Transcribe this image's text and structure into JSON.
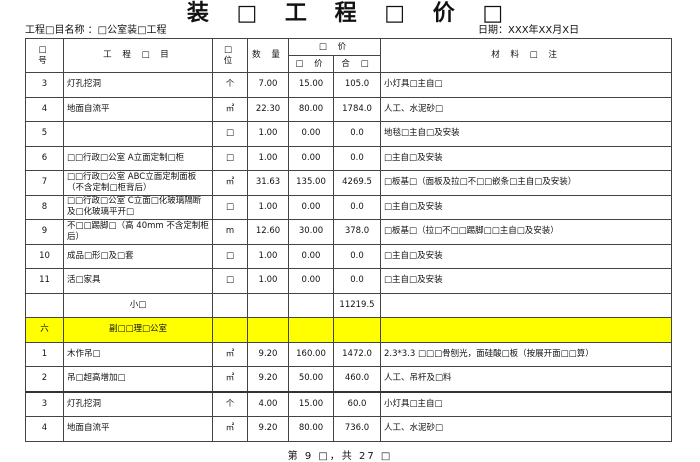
{
  "title": "装 □ 工 程 □ 价 □",
  "project": "工程□目名称 ：□公室装□工程",
  "date": "日期：XXX年XX月X日",
  "headers": {
    "no": "□ 号",
    "item": "工 程 □ 目",
    "unit": "□ 位",
    "qty": "数 量",
    "price_group": "□ 价",
    "unit_price": "□ 价",
    "total": "合 □",
    "notes": "材 料 □ 注"
  },
  "rows": [
    {
      "no": "3",
      "item": "灯孔挖洞",
      "unit": "个",
      "qty": "7.00",
      "price": "15.00",
      "total": "105.0",
      "notes": "小灯具□主自□"
    },
    {
      "no": "4",
      "item": "地面自流平",
      "unit": "㎡",
      "qty": "22.30",
      "price": "80.00",
      "total": "1784.0",
      "notes": "人工、水泥砂□"
    },
    {
      "no": "5",
      "item": "",
      "unit": "□",
      "qty": "1.00",
      "price": "0.00",
      "total": "0.0",
      "notes": "地毯□主自□及安装"
    },
    {
      "no": "6",
      "item": "□□行政□公室 A立面定制□柜",
      "unit": "□",
      "qty": "1.00",
      "price": "0.00",
      "total": "0.0",
      "notes": "□主自□及安装"
    },
    {
      "no": "7",
      "item": "□□行政□公室 ABC立面定制面板（不含定制□柜背后）",
      "unit": "㎡",
      "qty": "31.63",
      "price": "135.00",
      "total": "4269.5",
      "notes": "□板基□（面板及拉□不□□嵌条□主自□及安装）"
    },
    {
      "no": "8",
      "item": "□□行政□公室 C立面□化玻璃隔断及□化玻璃平开□",
      "unit": "□",
      "qty": "1.00",
      "price": "0.00",
      "total": "0.0",
      "notes": "□主自□及安装"
    },
    {
      "no": "9",
      "item": "不□□踢脚□（高 40mm 不含定制柜后）",
      "unit": "m",
      "qty": "12.60",
      "price": "30.00",
      "total": "378.0",
      "notes": "□板基□（拉□不□□踢脚□□主自□及安装）"
    },
    {
      "no": "10",
      "item": "成品□形□及□套",
      "unit": "□",
      "qty": "1.00",
      "price": "0.00",
      "total": "0.0",
      "notes": "□主自□及安装"
    },
    {
      "no": "11",
      "item": "活□家具",
      "unit": "□",
      "qty": "1.00",
      "price": "0.00",
      "total": "0.0",
      "notes": "□主自□及安装"
    }
  ],
  "subtotal": {
    "label": "小□",
    "total": "11219.5"
  },
  "section": {
    "no": "六",
    "name": "副□□理□公室",
    "highlight_color": "#ffff00"
  },
  "rows2": [
    {
      "no": "1",
      "item": "木作吊□",
      "unit": "㎡",
      "qty": "9.20",
      "price": "160.00",
      "total": "1472.0",
      "notes": "2.3*3.3 □□□骨刨光，面硅酸□板（按展开面□□算）"
    },
    {
      "no": "2",
      "item": "吊□超高增加□",
      "unit": "㎡",
      "qty": "9.20",
      "price": "50.00",
      "total": "460.0",
      "notes": "人工、吊杆及□料"
    },
    {
      "no": "3",
      "item": "灯孔挖洞",
      "unit": "个",
      "qty": "4.00",
      "price": "15.00",
      "total": "60.0",
      "notes": "小灯具□主自□"
    },
    {
      "no": "4",
      "item": "地面自流平",
      "unit": "㎡",
      "qty": "9.20",
      "price": "80.00",
      "total": "736.0",
      "notes": "人工、水泥砂□"
    }
  ],
  "footer": "第 9 □，共 27 □"
}
